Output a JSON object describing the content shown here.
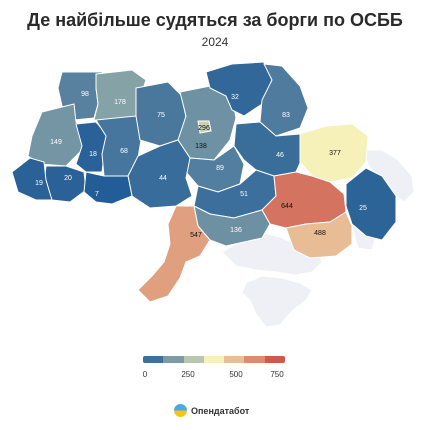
{
  "title": "Де найбільше судяться за борги по ОСББ",
  "subtitle": "2024",
  "colors": {
    "low": "#1f5a96",
    "mid": "#f6f1ba",
    "high": "#c6413b",
    "nodata": "#eef0f5"
  },
  "legend": {
    "ticks": [
      "0",
      "250",
      "500",
      "750"
    ],
    "min": 0,
    "max": 750
  },
  "brand": {
    "name": "Опендатабот"
  },
  "chart_data": {
    "type": "choropleth",
    "value_range": [
      0,
      750
    ],
    "regions": [
      {
        "name": "Закарпатська",
        "value": 19
      },
      {
        "name": "Львівська",
        "value": 20
      },
      {
        "name": "Волинська",
        "value": 98
      },
      {
        "name": "Рівненська",
        "value": 178
      },
      {
        "name": "Тернопільська",
        "value": 18
      },
      {
        "name": "Івано-Франківська",
        "value": 7
      },
      {
        "name": "Хмельницька",
        "value": 68
      },
      {
        "name": "Житомирська",
        "value": 75
      },
      {
        "name": "Київська",
        "value": 138
      },
      {
        "name": "м. Київ",
        "value": 296
      },
      {
        "name": "Вінницька",
        "value": 44
      },
      {
        "name": "Чернігівська",
        "value": 32
      },
      {
        "name": "Сумська",
        "value": 83
      },
      {
        "name": "Черкаська",
        "value": 89
      },
      {
        "name": "Полтавська",
        "value": 46
      },
      {
        "name": "Кіровоградська",
        "value": 51
      },
      {
        "name": "Одеська",
        "value": 547
      },
      {
        "name": "Миколаївська",
        "value": 136
      },
      {
        "name": "Дніпропетровська",
        "value": 644
      },
      {
        "name": "Харківська",
        "value": 377
      },
      {
        "name": "Донецька",
        "value": 25
      },
      {
        "name": "Запорізька",
        "value": 488
      },
      {
        "name": "Чернівецька",
        "value": 149
      }
    ]
  }
}
